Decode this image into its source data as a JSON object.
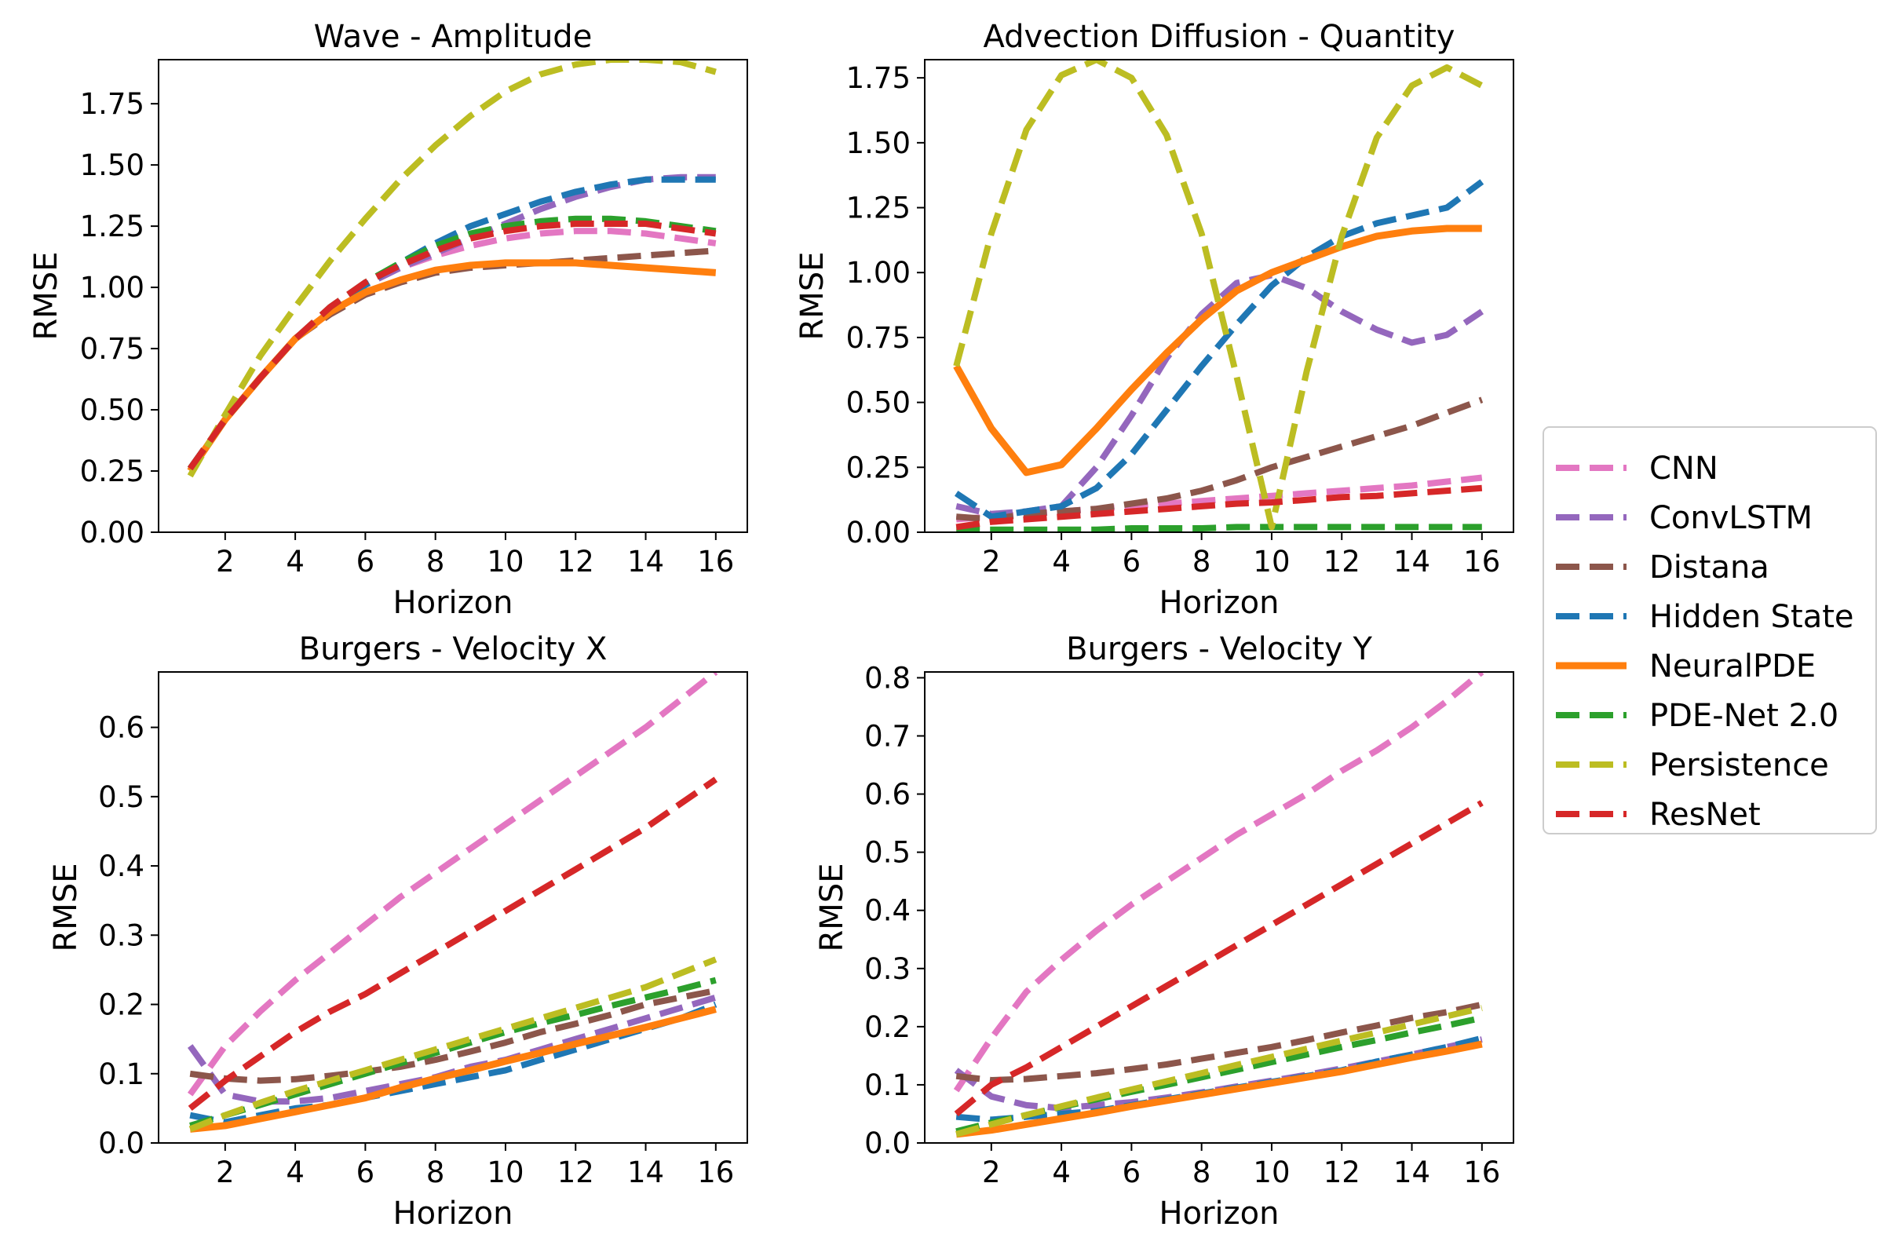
{
  "legend": {
    "placement": "right",
    "entries": [
      "CNN",
      "ConvLSTM",
      "Distana",
      "Hidden State",
      "NeuralPDE",
      "PDE-Net 2.0",
      "Persistence",
      "ResNet"
    ]
  },
  "colors": {
    "CNN": "#e377c2",
    "ConvLSTM": "#9467bd",
    "Distana": "#8c564b",
    "Hidden State": "#1f77b4",
    "NeuralPDE": "#ff7f0e",
    "PDE-Net 2.0": "#2ca02c",
    "Persistence": "#bcbd22",
    "ResNet": "#d62728"
  },
  "chart_data": [
    {
      "type": "line",
      "title": "Wave - Amplitude",
      "xlabel": "Horizon",
      "ylabel": "RMSE",
      "xlim": [
        0.1,
        16.9
      ],
      "ylim": [
        0,
        1.93
      ],
      "xticks": [
        2,
        4,
        6,
        8,
        10,
        12,
        14,
        16
      ],
      "yticks": [
        0.0,
        0.25,
        0.5,
        0.75,
        1.0,
        1.25,
        1.5,
        1.75
      ],
      "ytick_decimals": 2,
      "grid": false,
      "x": [
        1,
        2,
        3,
        4,
        5,
        6,
        7,
        8,
        9,
        10,
        11,
        12,
        13,
        14,
        15,
        16
      ],
      "series": [
        {
          "name": "CNN",
          "style": "dashed",
          "values": [
            0.26,
            0.46,
            0.63,
            0.79,
            0.91,
            1.01,
            1.08,
            1.13,
            1.17,
            1.2,
            1.22,
            1.23,
            1.23,
            1.22,
            1.2,
            1.18
          ]
        },
        {
          "name": "ConvLSTM",
          "style": "dashed",
          "values": [
            0.26,
            0.46,
            0.63,
            0.79,
            0.91,
            1.01,
            1.08,
            1.14,
            1.2,
            1.26,
            1.32,
            1.37,
            1.41,
            1.44,
            1.45,
            1.45
          ]
        },
        {
          "name": "Distana",
          "style": "dashed",
          "values": [
            0.26,
            0.46,
            0.63,
            0.79,
            0.89,
            0.97,
            1.02,
            1.06,
            1.08,
            1.09,
            1.1,
            1.11,
            1.12,
            1.13,
            1.14,
            1.15
          ]
        },
        {
          "name": "Hidden State",
          "style": "dashed",
          "values": [
            0.26,
            0.46,
            0.63,
            0.79,
            0.91,
            1.01,
            1.1,
            1.18,
            1.25,
            1.3,
            1.35,
            1.39,
            1.42,
            1.44,
            1.44,
            1.44
          ]
        },
        {
          "name": "NeuralPDE",
          "style": "solid",
          "values": [
            0.25,
            0.46,
            0.63,
            0.79,
            0.9,
            0.98,
            1.03,
            1.07,
            1.09,
            1.1,
            1.1,
            1.1,
            1.09,
            1.08,
            1.07,
            1.06
          ]
        },
        {
          "name": "PDE-Net 2.0",
          "style": "dashed",
          "values": [
            0.26,
            0.46,
            0.63,
            0.79,
            0.92,
            1.02,
            1.1,
            1.17,
            1.22,
            1.25,
            1.27,
            1.28,
            1.28,
            1.27,
            1.25,
            1.23
          ]
        },
        {
          "name": "Persistence",
          "style": "dashed",
          "values": [
            0.23,
            0.48,
            0.72,
            0.92,
            1.11,
            1.28,
            1.44,
            1.58,
            1.7,
            1.8,
            1.87,
            1.91,
            1.93,
            1.93,
            1.92,
            1.88
          ]
        },
        {
          "name": "ResNet",
          "style": "dashed",
          "values": [
            0.26,
            0.46,
            0.63,
            0.79,
            0.92,
            1.02,
            1.09,
            1.15,
            1.2,
            1.23,
            1.25,
            1.26,
            1.26,
            1.26,
            1.24,
            1.22
          ]
        }
      ]
    },
    {
      "type": "line",
      "title": "Advection Diffusion - Quantity",
      "xlabel": "Horizon",
      "ylabel": "RMSE",
      "xlim": [
        0.1,
        16.9
      ],
      "ylim": [
        0,
        1.82
      ],
      "xticks": [
        2,
        4,
        6,
        8,
        10,
        12,
        14,
        16
      ],
      "yticks": [
        0.0,
        0.25,
        0.5,
        0.75,
        1.0,
        1.25,
        1.5,
        1.75
      ],
      "ytick_decimals": 2,
      "grid": false,
      "x": [
        1,
        2,
        3,
        4,
        5,
        6,
        7,
        8,
        9,
        10,
        11,
        12,
        13,
        14,
        15,
        16
      ],
      "series": [
        {
          "name": "CNN",
          "style": "dashed",
          "values": [
            0.05,
            0.06,
            0.07,
            0.08,
            0.09,
            0.1,
            0.11,
            0.12,
            0.13,
            0.14,
            0.15,
            0.16,
            0.17,
            0.18,
            0.195,
            0.21
          ]
        },
        {
          "name": "ConvLSTM",
          "style": "dashed",
          "values": [
            0.1,
            0.07,
            0.08,
            0.1,
            0.25,
            0.45,
            0.67,
            0.84,
            0.96,
            0.99,
            0.94,
            0.85,
            0.78,
            0.73,
            0.76,
            0.85
          ]
        },
        {
          "name": "Distana",
          "style": "dashed",
          "values": [
            0.06,
            0.05,
            0.07,
            0.08,
            0.09,
            0.11,
            0.13,
            0.16,
            0.2,
            0.25,
            0.29,
            0.33,
            0.37,
            0.41,
            0.46,
            0.51
          ]
        },
        {
          "name": "Hidden State",
          "style": "dashed",
          "values": [
            0.15,
            0.06,
            0.08,
            0.1,
            0.17,
            0.3,
            0.47,
            0.64,
            0.8,
            0.95,
            1.06,
            1.14,
            1.19,
            1.22,
            1.25,
            1.35
          ]
        },
        {
          "name": "NeuralPDE",
          "style": "solid",
          "values": [
            0.64,
            0.4,
            0.23,
            0.26,
            0.4,
            0.55,
            0.69,
            0.82,
            0.93,
            1.0,
            1.05,
            1.1,
            1.14,
            1.16,
            1.17,
            1.17
          ]
        },
        {
          "name": "PDE-Net 2.0",
          "style": "dashed",
          "values": [
            0.01,
            0.01,
            0.01,
            0.01,
            0.01,
            0.015,
            0.015,
            0.015,
            0.02,
            0.02,
            0.02,
            0.02,
            0.02,
            0.02,
            0.02,
            0.02
          ]
        },
        {
          "name": "Persistence",
          "style": "dashed",
          "values": [
            0.64,
            1.15,
            1.55,
            1.76,
            1.82,
            1.75,
            1.53,
            1.15,
            0.6,
            0.02,
            0.62,
            1.14,
            1.52,
            1.72,
            1.79,
            1.72
          ]
        },
        {
          "name": "ResNet",
          "style": "dashed",
          "values": [
            0.02,
            0.04,
            0.05,
            0.06,
            0.07,
            0.08,
            0.09,
            0.1,
            0.11,
            0.115,
            0.125,
            0.135,
            0.14,
            0.15,
            0.16,
            0.17
          ]
        }
      ]
    },
    {
      "type": "line",
      "title": "Burgers - Velocity X",
      "xlabel": "Horizon",
      "ylabel": "RMSE",
      "xlim": [
        0.1,
        16.9
      ],
      "ylim": [
        0,
        0.68
      ],
      "xticks": [
        2,
        4,
        6,
        8,
        10,
        12,
        14,
        16
      ],
      "yticks": [
        0.0,
        0.1,
        0.2,
        0.3,
        0.4,
        0.5,
        0.6
      ],
      "ytick_decimals": 1,
      "grid": false,
      "x": [
        1,
        2,
        3,
        4,
        5,
        6,
        7,
        8,
        9,
        10,
        11,
        12,
        13,
        14,
        15,
        16
      ],
      "series": [
        {
          "name": "CNN",
          "style": "dashed",
          "values": [
            0.07,
            0.14,
            0.19,
            0.235,
            0.275,
            0.315,
            0.355,
            0.39,
            0.425,
            0.46,
            0.495,
            0.53,
            0.565,
            0.6,
            0.64,
            0.68
          ]
        },
        {
          "name": "ConvLSTM",
          "style": "dashed",
          "values": [
            0.14,
            0.07,
            0.06,
            0.06,
            0.065,
            0.075,
            0.085,
            0.095,
            0.11,
            0.12,
            0.135,
            0.15,
            0.165,
            0.18,
            0.195,
            0.21
          ]
        },
        {
          "name": "Distana",
          "style": "dashed",
          "values": [
            0.1,
            0.093,
            0.09,
            0.092,
            0.097,
            0.103,
            0.11,
            0.12,
            0.132,
            0.145,
            0.16,
            0.172,
            0.185,
            0.2,
            0.21,
            0.22
          ]
        },
        {
          "name": "Hidden State",
          "style": "dashed",
          "values": [
            0.04,
            0.03,
            0.04,
            0.05,
            0.055,
            0.065,
            0.075,
            0.085,
            0.095,
            0.105,
            0.12,
            0.135,
            0.15,
            0.165,
            0.18,
            0.2
          ]
        },
        {
          "name": "NeuralPDE",
          "style": "solid",
          "values": [
            0.02,
            0.025,
            0.035,
            0.045,
            0.055,
            0.065,
            0.08,
            0.093,
            0.105,
            0.118,
            0.13,
            0.143,
            0.155,
            0.167,
            0.18,
            0.193
          ]
        },
        {
          "name": "PDE-Net 2.0",
          "style": "dashed",
          "values": [
            0.025,
            0.04,
            0.055,
            0.07,
            0.085,
            0.1,
            0.115,
            0.13,
            0.145,
            0.16,
            0.173,
            0.185,
            0.198,
            0.21,
            0.222,
            0.235
          ]
        },
        {
          "name": "Persistence",
          "style": "dashed",
          "values": [
            0.02,
            0.04,
            0.058,
            0.075,
            0.09,
            0.105,
            0.12,
            0.135,
            0.15,
            0.165,
            0.18,
            0.195,
            0.21,
            0.225,
            0.245,
            0.265
          ]
        },
        {
          "name": "ResNet",
          "style": "dashed",
          "values": [
            0.05,
            0.09,
            0.125,
            0.16,
            0.19,
            0.215,
            0.245,
            0.275,
            0.305,
            0.335,
            0.365,
            0.395,
            0.425,
            0.455,
            0.49,
            0.525
          ]
        }
      ]
    },
    {
      "type": "line",
      "title": "Burgers - Velocity Y",
      "xlabel": "Horizon",
      "ylabel": "RMSE",
      "xlim": [
        0.1,
        16.9
      ],
      "ylim": [
        0,
        0.81
      ],
      "xticks": [
        2,
        4,
        6,
        8,
        10,
        12,
        14,
        16
      ],
      "yticks": [
        0.0,
        0.1,
        0.2,
        0.3,
        0.4,
        0.5,
        0.6,
        0.7,
        0.8
      ],
      "ytick_decimals": 1,
      "grid": false,
      "x": [
        1,
        2,
        3,
        4,
        5,
        6,
        7,
        8,
        9,
        10,
        11,
        12,
        13,
        14,
        15,
        16
      ],
      "series": [
        {
          "name": "CNN",
          "style": "dashed",
          "values": [
            0.09,
            0.18,
            0.26,
            0.315,
            0.365,
            0.41,
            0.45,
            0.49,
            0.53,
            0.565,
            0.6,
            0.64,
            0.675,
            0.715,
            0.76,
            0.81
          ]
        },
        {
          "name": "ConvLSTM",
          "style": "dashed",
          "values": [
            0.125,
            0.08,
            0.065,
            0.06,
            0.065,
            0.07,
            0.078,
            0.087,
            0.097,
            0.107,
            0.117,
            0.128,
            0.14,
            0.152,
            0.165,
            0.178
          ]
        },
        {
          "name": "Distana",
          "style": "dashed",
          "values": [
            0.115,
            0.108,
            0.11,
            0.115,
            0.12,
            0.127,
            0.135,
            0.145,
            0.155,
            0.165,
            0.177,
            0.19,
            0.202,
            0.215,
            0.225,
            0.238
          ]
        },
        {
          "name": "Hidden State",
          "style": "dashed",
          "values": [
            0.045,
            0.04,
            0.045,
            0.05,
            0.055,
            0.065,
            0.075,
            0.085,
            0.095,
            0.105,
            0.115,
            0.125,
            0.14,
            0.152,
            0.165,
            0.18
          ]
        },
        {
          "name": "NeuralPDE",
          "style": "solid",
          "values": [
            0.015,
            0.022,
            0.032,
            0.042,
            0.052,
            0.063,
            0.073,
            0.083,
            0.093,
            0.103,
            0.113,
            0.123,
            0.135,
            0.147,
            0.158,
            0.17
          ]
        },
        {
          "name": "PDE-Net 2.0",
          "style": "dashed",
          "values": [
            0.02,
            0.035,
            0.048,
            0.062,
            0.075,
            0.088,
            0.1,
            0.113,
            0.126,
            0.139,
            0.152,
            0.165,
            0.177,
            0.19,
            0.202,
            0.215
          ]
        },
        {
          "name": "Persistence",
          "style": "dashed",
          "values": [
            0.015,
            0.032,
            0.048,
            0.063,
            0.078,
            0.092,
            0.106,
            0.12,
            0.134,
            0.148,
            0.162,
            0.176,
            0.19,
            0.204,
            0.218,
            0.232
          ]
        },
        {
          "name": "ResNet",
          "style": "dashed",
          "values": [
            0.05,
            0.1,
            0.13,
            0.165,
            0.2,
            0.235,
            0.27,
            0.305,
            0.34,
            0.375,
            0.41,
            0.445,
            0.48,
            0.515,
            0.55,
            0.585
          ]
        }
      ]
    }
  ]
}
